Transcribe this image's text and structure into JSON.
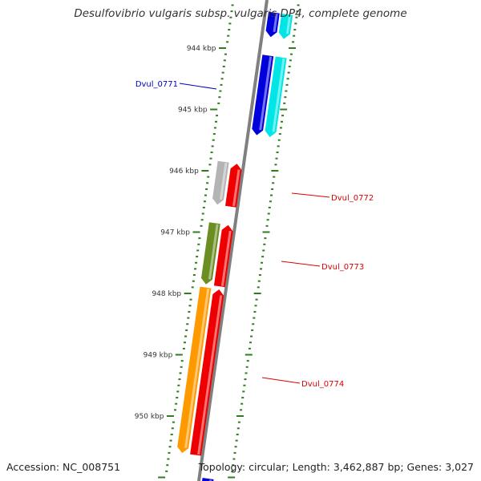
{
  "title": "Desulfovibrio vulgaris subsp. vulgaris DP4, complete genome",
  "footer": {
    "accession": "Accession: NC_008751",
    "topology": "Topology: circular; Length: 3,462,887 bp; Genes: 3,027"
  },
  "colors": {
    "backbone": "#808080",
    "tick": "#2e7d1e",
    "tick_label": "#333333",
    "label_blue": "#0000c0",
    "label_red": "#dd0000",
    "cyan": "#00e5e5",
    "blue": "#0000dd",
    "red": "#ee0000",
    "gray": "#b4b4b4",
    "olive": "#6b8e23",
    "orange": "#ff9900"
  },
  "ruler": {
    "unit": "kbp",
    "major_ticks_kbp": [
      944,
      945,
      946,
      947,
      948,
      949,
      950
    ],
    "labels": [
      "944 kbp",
      "945 kbp",
      "946 kbp",
      "947 kbp",
      "948 kbp",
      "949 kbp",
      "950 kbp"
    ]
  },
  "genes": [
    {
      "id": "cyan-top",
      "label": "",
      "start_kbp": 943.4,
      "end_kbp": 943.8,
      "strand": "+",
      "track": 1,
      "color": "cyan"
    },
    {
      "id": "blue-top",
      "label": "",
      "start_kbp": 943.4,
      "end_kbp": 943.8,
      "strand": "+",
      "track": 2,
      "color": "blue"
    },
    {
      "id": "cyan-0771",
      "label": "",
      "start_kbp": 944.1,
      "end_kbp": 945.4,
      "strand": "+",
      "track": 1,
      "color": "cyan"
    },
    {
      "id": "Dvul_0771",
      "label": "Dvul_0771",
      "start_kbp": 944.1,
      "end_kbp": 945.4,
      "strand": "+",
      "track": 2,
      "color": "blue",
      "label_side": "left",
      "label_color": "label_blue"
    },
    {
      "id": "red-0772",
      "label": "",
      "start_kbp": 945.9,
      "end_kbp": 946.6,
      "strand": "-",
      "track": 3,
      "color": "red"
    },
    {
      "id": "Dvul_0772",
      "label": "Dvul_0772",
      "start_kbp": 945.9,
      "end_kbp": 946.6,
      "strand": "+",
      "track": 4,
      "color": "gray",
      "label_side": "right",
      "label_color": "label_red"
    },
    {
      "id": "red-0773",
      "label": "",
      "start_kbp": 946.9,
      "end_kbp": 947.9,
      "strand": "-",
      "track": 3,
      "color": "red"
    },
    {
      "id": "Dvul_0773",
      "label": "Dvul_0773",
      "start_kbp": 946.9,
      "end_kbp": 947.9,
      "strand": "+",
      "track": 4,
      "color": "olive",
      "label_side": "right",
      "label_color": "label_red"
    },
    {
      "id": "red-0774",
      "label": "",
      "start_kbp": 947.95,
      "end_kbp": 950.65,
      "strand": "-",
      "track": 3,
      "color": "red"
    },
    {
      "id": "Dvul_0774",
      "label": "Dvul_0774",
      "start_kbp": 947.95,
      "end_kbp": 950.65,
      "strand": "+",
      "track": 4,
      "color": "orange",
      "label_side": "right",
      "label_color": "label_red"
    },
    {
      "id": "blue-bottom",
      "label": "",
      "start_kbp": 951.0,
      "end_kbp": 951.2,
      "strand": "+",
      "track": 2,
      "color": "blue"
    }
  ]
}
